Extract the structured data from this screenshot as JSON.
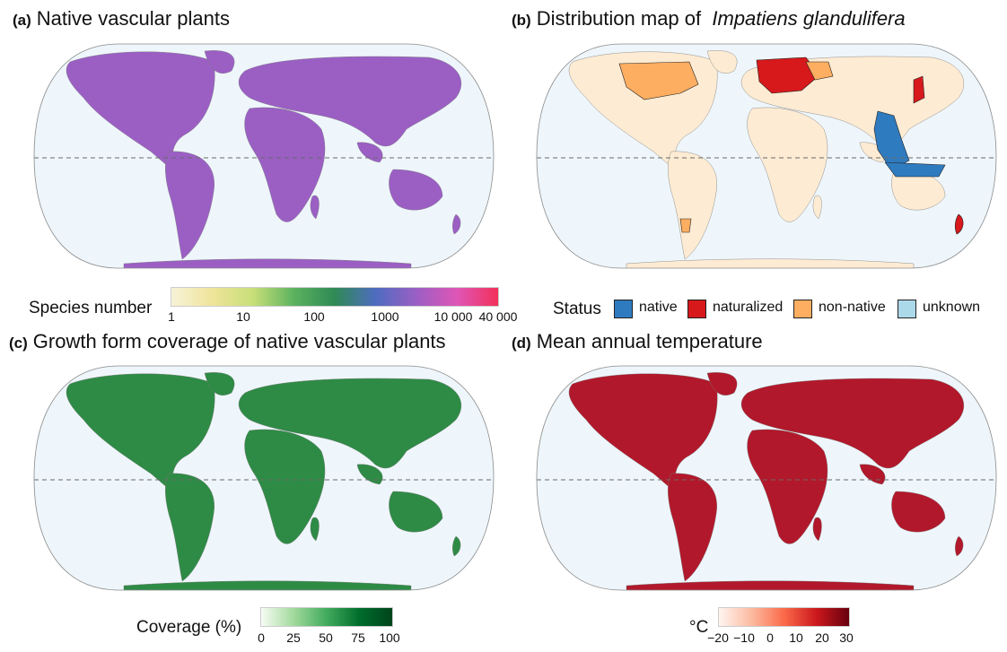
{
  "panels": {
    "a": {
      "tag": "(a)",
      "title": "Native vascular plants"
    },
    "b": {
      "tag": "(b)",
      "title": "Distribution map of",
      "species": "Impatiens glandulifera"
    },
    "c": {
      "tag": "(c)",
      "title": "Growth form coverage of native vascular plants"
    },
    "d": {
      "tag": "(d)",
      "title": "Mean annual temperature"
    }
  },
  "legends": {
    "species_number": {
      "title": "Species number",
      "ticks": [
        "1",
        "10",
        "100",
        "1000",
        "10 000",
        "40 000"
      ],
      "scale": "log",
      "colors": [
        "#f7f2d8",
        "#efe49a",
        "#c8df78",
        "#5cb25f",
        "#2f8a55",
        "#4e6cc0",
        "#9b5fc4",
        "#df56b6",
        "#f2305a"
      ]
    },
    "status": {
      "title": "Status",
      "items": [
        {
          "label": "native",
          "color": "#2f7bbf"
        },
        {
          "label": "naturalized",
          "color": "#d7191c"
        },
        {
          "label": "non-native",
          "color": "#fdae61"
        },
        {
          "label": "unknown",
          "color": "#abd9e9"
        }
      ]
    },
    "coverage": {
      "title": "Coverage (%)",
      "ticks": [
        "0",
        "25",
        "50",
        "75",
        "100"
      ],
      "colors": [
        "#f7fcf5",
        "#a1d99b",
        "#41ab5d",
        "#006d2c",
        "#00441b"
      ]
    },
    "temperature": {
      "title": "°C",
      "ticks": [
        "−20",
        "−10",
        "0",
        "10",
        "20",
        "30"
      ],
      "colors": [
        "#fff5f0",
        "#fcbba1",
        "#fb6a4a",
        "#cb181d",
        "#67000d"
      ]
    }
  },
  "map_style": {
    "ocean": "#eef6fb",
    "outline": "#8a8a8a",
    "equator": "#6a6a6a",
    "panel_a_land": "#9b5fc4",
    "panel_b_land": "#fdebd3",
    "panel_c_land": "#2e8b45",
    "panel_d_land": "#b2182b"
  }
}
